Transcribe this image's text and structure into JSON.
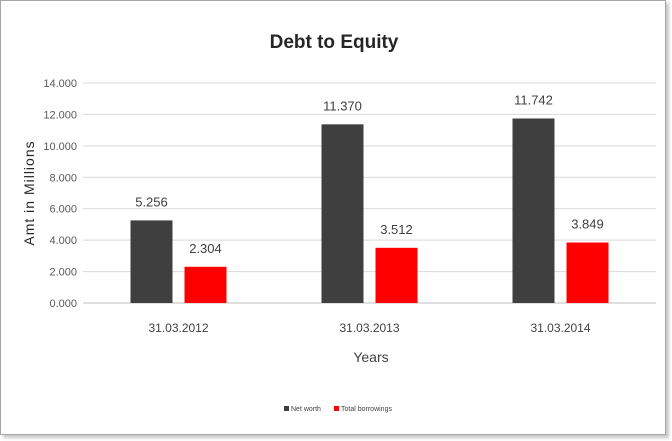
{
  "chart_data": {
    "type": "bar",
    "title": "Debt to Equity",
    "xlabel": "Years",
    "ylabel": "Amt in Millions",
    "categories": [
      "31.03.2012",
      "31.03.2013",
      "31.03.2014"
    ],
    "series": [
      {
        "name": "Net worth",
        "values": [
          5.256,
          11.37,
          11.742
        ],
        "labels": [
          "5.256",
          "11.370",
          "11.742"
        ],
        "color": "#3f3f3f"
      },
      {
        "name": "Total borrowings",
        "values": [
          2.304,
          3.512,
          3.849
        ],
        "labels": [
          "2.304",
          "3.512",
          "3.849"
        ],
        "color": "#ff0000"
      }
    ],
    "ylim": [
      0,
      14
    ],
    "yticks": [
      0,
      2,
      4,
      6,
      8,
      10,
      12,
      14
    ],
    "ytick_labels": [
      "0.000",
      "2.000",
      "4.000",
      "6.000",
      "8.000",
      "10.000",
      "12.000",
      "14.000"
    ],
    "grid": true,
    "legend_position": "bottom"
  }
}
